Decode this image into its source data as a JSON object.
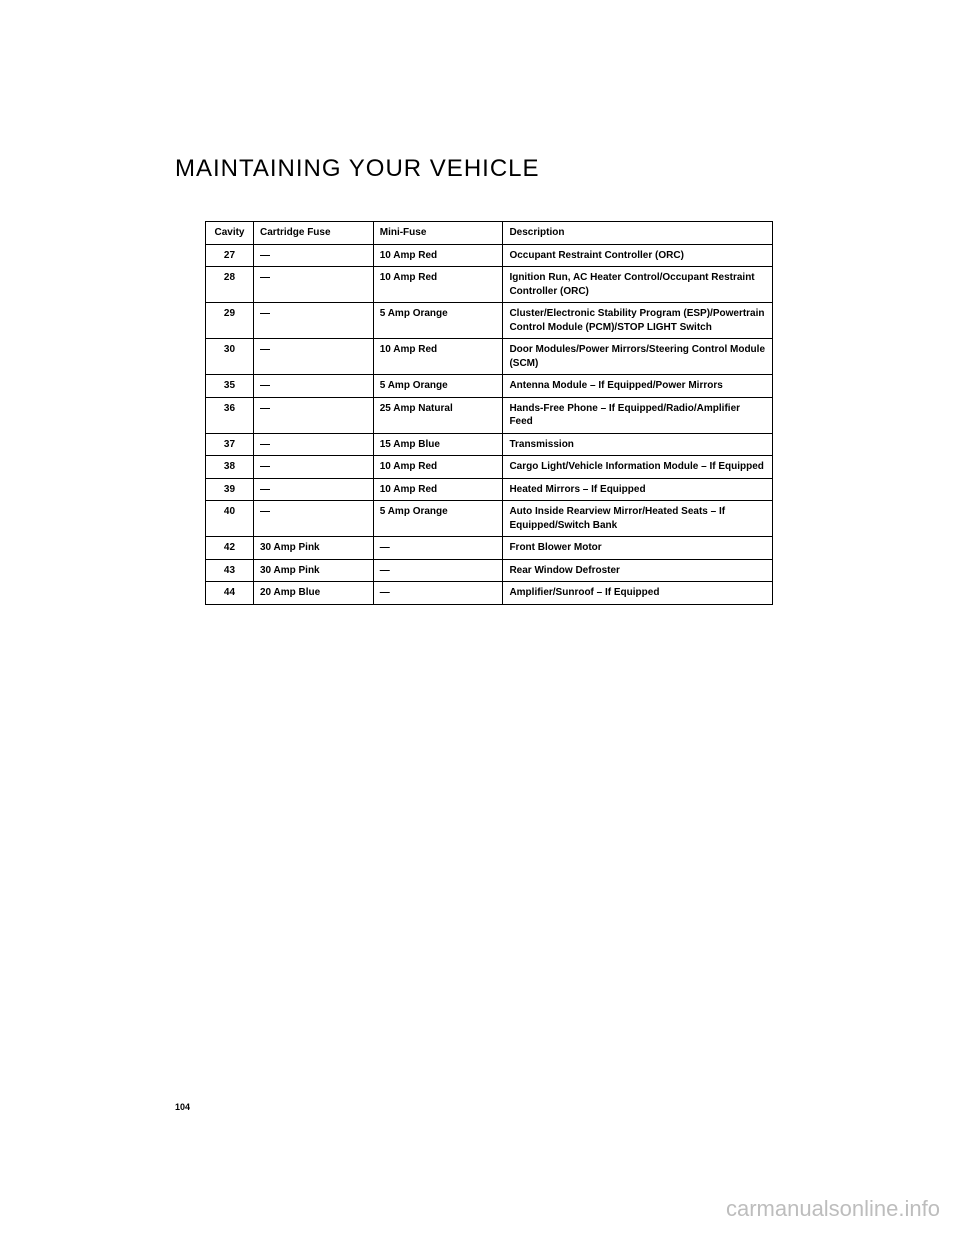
{
  "heading": "MAINTAINING YOUR VEHICLE",
  "page_number": "104",
  "watermark": "carmanualsonline.info",
  "table": {
    "headers": {
      "cavity": "Cavity",
      "cartridge": "Cartridge Fuse",
      "mini": "Mini-Fuse",
      "description": "Description"
    },
    "rows": [
      {
        "c": "27",
        "cart": "—",
        "mini": "10 Amp Red",
        "desc": "Occupant Restraint Controller (ORC)"
      },
      {
        "c": "28",
        "cart": "—",
        "mini": "10 Amp Red",
        "desc": "Ignition Run, AC Heater Control/Occupant Restraint Controller (ORC)"
      },
      {
        "c": "29",
        "cart": "—",
        "mini": "5 Amp Orange",
        "desc": "Cluster/Electronic Stability Program (ESP)/Powertrain Control Module (PCM)/STOP LIGHT Switch"
      },
      {
        "c": "30",
        "cart": "—",
        "mini": "10 Amp Red",
        "desc": "Door Modules/Power Mirrors/Steering Control Module (SCM)"
      },
      {
        "c": "35",
        "cart": "—",
        "mini": "5 Amp Orange",
        "desc": "Antenna Module – If Equipped/Power Mirrors"
      },
      {
        "c": "36",
        "cart": "—",
        "mini": "25 Amp Natural",
        "desc": "Hands-Free Phone – If Equipped/Radio/Amplifier Feed"
      },
      {
        "c": "37",
        "cart": "—",
        "mini": "15 Amp Blue",
        "desc": "Transmission"
      },
      {
        "c": "38",
        "cart": "—",
        "mini": "10 Amp Red",
        "desc": "Cargo Light/Vehicle Information Module – If Equipped"
      },
      {
        "c": "39",
        "cart": "—",
        "mini": "10 Amp Red",
        "desc": "Heated Mirrors – If Equipped"
      },
      {
        "c": "40",
        "cart": "—",
        "mini": "5 Amp Orange",
        "desc": "Auto Inside Rearview Mirror/Heated Seats – If Equipped/Switch Bank"
      },
      {
        "c": "42",
        "cart": "30 Amp Pink",
        "mini": "—",
        "desc": "Front Blower Motor"
      },
      {
        "c": "43",
        "cart": "30 Amp Pink",
        "mini": "—",
        "desc": "Rear Window Defroster"
      },
      {
        "c": "44",
        "cart": "20 Amp Blue",
        "mini": "—",
        "desc": "Amplifier/Sunroof – If Equipped"
      }
    ]
  }
}
